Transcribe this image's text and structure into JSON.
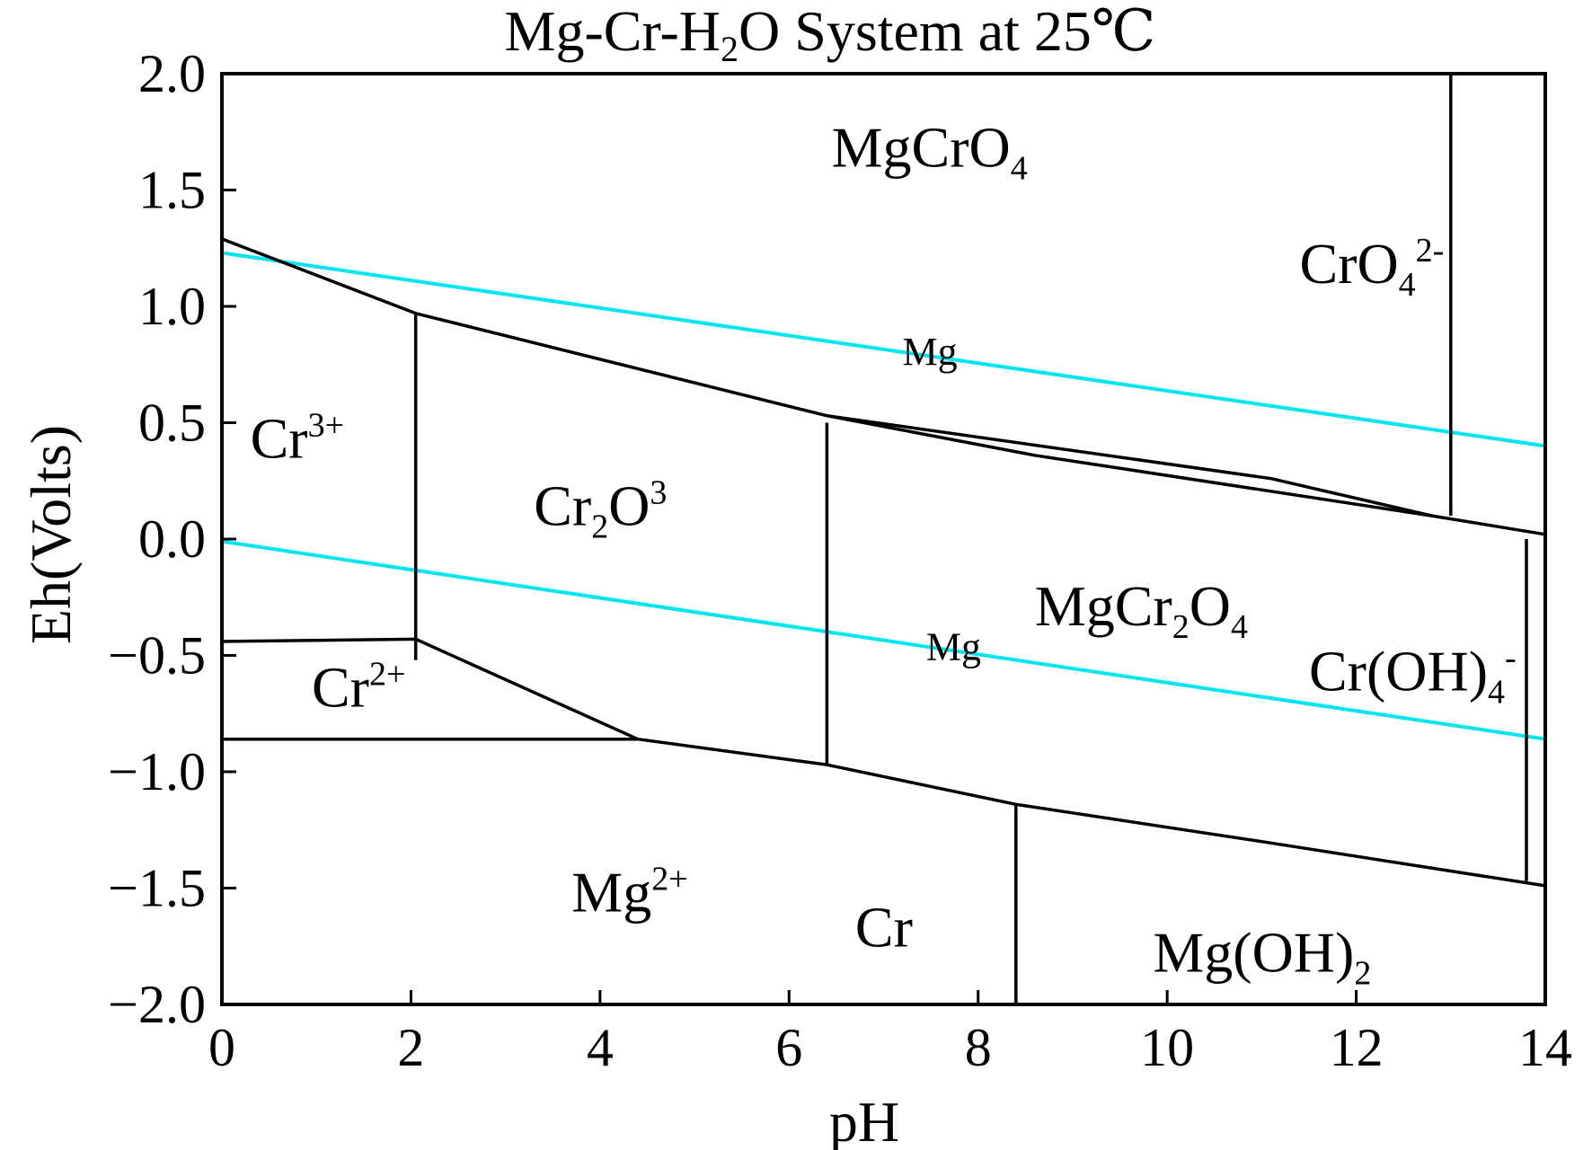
{
  "chart_data": {
    "type": "line",
    "title_parts": [
      "Mg-Cr-H",
      "2",
      "O System at 25℃"
    ],
    "xlabel": "pH",
    "ylabel": "Eh(Volts)",
    "xlim": [
      0,
      14
    ],
    "ylim": [
      -2.0,
      2.0
    ],
    "x_ticks": [
      "0",
      "2",
      "4",
      "6",
      "8",
      "10",
      "12",
      "14"
    ],
    "y_ticks": [
      "2.0",
      "1.5",
      "1.0",
      "0.5",
      "0.0",
      "−0.5",
      "−1.0",
      "−1.5",
      "−2.0"
    ],
    "grid": false,
    "line_colors": {
      "boundary": "#000000",
      "water": "#00e5ee"
    },
    "boundaries": [
      {
        "name": "upper-boundary",
        "points": [
          [
            0,
            1.29
          ],
          [
            2.05,
            0.97
          ],
          [
            6.4,
            0.53
          ],
          [
            8.6,
            0.36
          ],
          [
            12.8,
            0.1
          ],
          [
            14,
            0.02
          ]
        ]
      },
      {
        "name": "upper-inner-boundary",
        "points": [
          [
            6.4,
            0.53
          ],
          [
            11.1,
            0.26
          ],
          [
            12.8,
            0.1
          ]
        ]
      },
      {
        "name": "cr3-cr2o3-boundary",
        "points": [
          [
            2.05,
            0.97
          ],
          [
            2.05,
            -0.52
          ]
        ]
      },
      {
        "name": "cr3-cr2-boundary",
        "points": [
          [
            0,
            -0.44
          ],
          [
            2.05,
            -0.43
          ]
        ]
      },
      {
        "name": "cr2o3-lower-boundary",
        "points": [
          [
            2.05,
            -0.43
          ],
          [
            4.4,
            -0.86
          ]
        ]
      },
      {
        "name": "cr2-mg2-boundary",
        "points": [
          [
            0,
            -0.86
          ],
          [
            4.4,
            -0.86
          ]
        ]
      },
      {
        "name": "cr-lower-boundary",
        "points": [
          [
            4.4,
            -0.86
          ],
          [
            6.4,
            -0.97
          ],
          [
            8.4,
            -1.14
          ],
          [
            11.0,
            -1.3
          ],
          [
            14,
            -1.49
          ]
        ]
      },
      {
        "name": "cr2o3-mgcr2o4-boundary",
        "points": [
          [
            6.4,
            0.5
          ],
          [
            6.4,
            -0.97
          ]
        ]
      },
      {
        "name": "cr-mgoh2-boundary",
        "points": [
          [
            8.4,
            -1.14
          ],
          [
            8.4,
            -2.0
          ]
        ]
      },
      {
        "name": "cro4-boundary",
        "points": [
          [
            13.0,
            2.0
          ],
          [
            13.0,
            0.1
          ]
        ]
      },
      {
        "name": "croh4-left-boundary",
        "points": [
          [
            13.8,
            0.0
          ],
          [
            13.8,
            -1.47
          ]
        ]
      }
    ],
    "water_lines": [
      {
        "name": "oxygen-line",
        "points": [
          [
            0,
            1.23
          ],
          [
            14,
            0.4
          ]
        ]
      },
      {
        "name": "hydrogen-line",
        "points": [
          [
            0,
            -0.01
          ],
          [
            14,
            -0.86
          ]
        ]
      }
    ],
    "region_labels": [
      {
        "name": "mgcro4",
        "x": 6.45,
        "y": 1.6,
        "parts": [
          [
            "MgCrO",
            "n"
          ],
          [
            "4",
            "s"
          ]
        ]
      },
      {
        "name": "cro4-2",
        "x": 11.4,
        "y": 1.1,
        "parts": [
          [
            "CrO",
            "n"
          ],
          [
            "4",
            "s"
          ],
          [
            "2-",
            "p"
          ]
        ]
      },
      {
        "name": "cr3",
        "x": 0.3,
        "y": 0.35,
        "parts": [
          [
            "Cr",
            "n"
          ],
          [
            "3+",
            "p"
          ]
        ]
      },
      {
        "name": "cr2o3",
        "x": 3.3,
        "y": 0.06,
        "parts": [
          [
            "Cr",
            "n"
          ],
          [
            "2",
            "s"
          ],
          [
            "O",
            "n"
          ],
          [
            "3",
            "p"
          ]
        ]
      },
      {
        "name": "mg-upper",
        "x": 7.2,
        "y": 0.75,
        "small": true,
        "parts": [
          [
            "Mg",
            "n"
          ]
        ]
      },
      {
        "name": "mgcr2o4",
        "x": 8.6,
        "y": -0.37,
        "parts": [
          [
            "MgCr",
            "n"
          ],
          [
            "2",
            "s"
          ],
          [
            "O",
            "n"
          ],
          [
            "4",
            "s"
          ]
        ]
      },
      {
        "name": "mg-lower",
        "x": 7.45,
        "y": -0.52,
        "small": true,
        "parts": [
          [
            "Mg",
            "n"
          ]
        ]
      },
      {
        "name": "croh4",
        "x": 11.5,
        "y": -0.65,
        "parts": [
          [
            "Cr(OH)",
            "n"
          ],
          [
            "4",
            "s"
          ],
          [
            "-",
            "p"
          ]
        ]
      },
      {
        "name": "cr2",
        "x": 0.95,
        "y": -0.72,
        "parts": [
          [
            "Cr",
            "n"
          ],
          [
            "2+",
            "p"
          ]
        ]
      },
      {
        "name": "mg2",
        "x": 3.7,
        "y": -1.6,
        "parts": [
          [
            "Mg",
            "n"
          ],
          [
            "2+",
            "p"
          ]
        ]
      },
      {
        "name": "cr",
        "x": 6.7,
        "y": -1.75,
        "parts": [
          [
            "Cr",
            "n"
          ]
        ]
      },
      {
        "name": "mgoh2",
        "x": 9.85,
        "y": -1.86,
        "parts": [
          [
            "Mg(OH)",
            "n"
          ],
          [
            "2",
            "s"
          ]
        ]
      }
    ]
  }
}
